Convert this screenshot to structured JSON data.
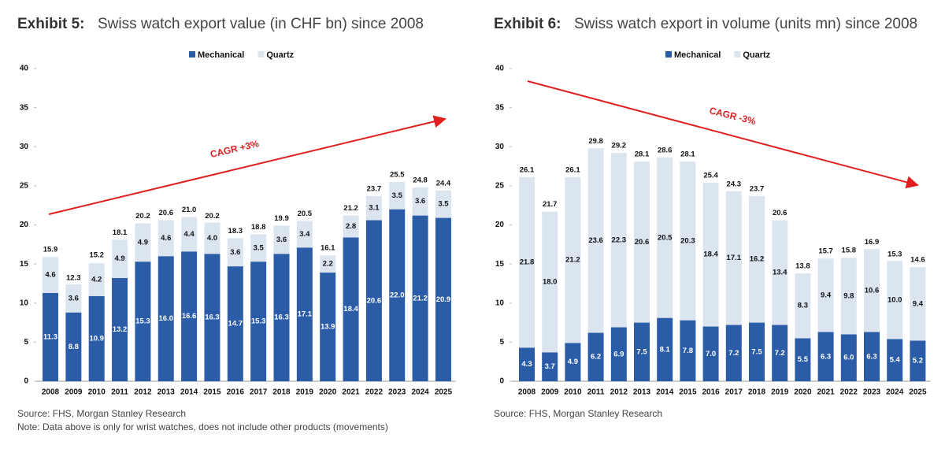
{
  "chart_data": [
    {
      "type": "bar",
      "stacked": true,
      "label": "Exhibit 5:",
      "title": "Swiss watch export value (in CHF bn) since 2008",
      "categories": [
        "2008",
        "2009",
        "2010",
        "2011",
        "2012",
        "2013",
        "2014",
        "2015",
        "2016",
        "2017",
        "2018",
        "2019",
        "2020",
        "2021",
        "2022",
        "2023",
        "2024",
        "2025"
      ],
      "series": [
        {
          "name": "Mechanical",
          "color": "#2b5ca8",
          "values": [
            11.3,
            8.8,
            10.9,
            13.2,
            15.3,
            16.0,
            16.6,
            16.3,
            14.7,
            15.3,
            16.3,
            17.1,
            13.9,
            18.4,
            20.6,
            22.0,
            21.2,
            20.9
          ],
          "value_labels": [
            "11.3",
            "8.8",
            "10.9",
            "13.2",
            "15.3",
            "16.0",
            "16.6",
            "16.3",
            "14.7",
            "15.3",
            "16.3",
            "17.1",
            "13.9",
            "18.4",
            "20.6",
            "22.0",
            "21.2",
            "20.9"
          ]
        },
        {
          "name": "Quartz",
          "color": "#dbe5f0",
          "values": [
            4.6,
            3.6,
            4.2,
            4.9,
            4.9,
            4.6,
            4.4,
            4.0,
            3.6,
            3.5,
            3.6,
            3.4,
            2.2,
            2.8,
            3.1,
            3.5,
            3.6,
            3.5
          ],
          "value_labels": [
            "4.6",
            "3.6",
            "4.2",
            "4.9",
            "4.9",
            "4.6",
            "4.4",
            "4.0",
            "3.6",
            "3.5",
            "3.6",
            "3.4",
            "2.2",
            "2.8",
            "3.1",
            "3.5",
            "3.6",
            "3.5"
          ]
        }
      ],
      "totals": {
        "values": [
          15.9,
          12.3,
          15.2,
          18.1,
          20.2,
          20.6,
          21.0,
          20.2,
          18.3,
          18.8,
          19.9,
          20.5,
          16.1,
          21.2,
          23.7,
          25.5,
          24.8,
          24.4
        ],
        "value_labels": [
          "15.9",
          "12.3",
          "15.2",
          "18.1",
          "20.2",
          "20.6",
          "21.0",
          "20.2",
          "18.3",
          "18.8",
          "19.9",
          "20.5",
          "16.1",
          "21.2",
          "23.7",
          "25.5",
          "24.8",
          "24.4"
        ]
      },
      "ylim": [
        0,
        40
      ],
      "yticks": [
        0,
        5,
        10,
        15,
        20,
        25,
        30,
        35,
        40
      ],
      "annotation": "CAGR +3%",
      "source": "Source: FHS, Morgan Stanley Research",
      "note": "Note: Data above is only for wrist watches, does not include other products (movements)"
    },
    {
      "type": "bar",
      "stacked": true,
      "label": "Exhibit 6:",
      "title": "Swiss watch export in volume (units mn) since 2008",
      "categories": [
        "2008",
        "2009",
        "2010",
        "2011",
        "2012",
        "2013",
        "2014",
        "2015",
        "2016",
        "2017",
        "2018",
        "2019",
        "2020",
        "2021",
        "2022",
        "2023",
        "2024",
        "2025"
      ],
      "series": [
        {
          "name": "Mechanical",
          "color": "#2b5ca8",
          "values": [
            4.3,
            3.7,
            4.9,
            6.2,
            6.9,
            7.5,
            8.1,
            7.8,
            7.0,
            7.2,
            7.5,
            7.2,
            5.5,
            6.3,
            6.0,
            6.3,
            5.4,
            5.2
          ],
          "value_labels": [
            "4.3",
            "3.7",
            "4.9",
            "6.2",
            "6.9",
            "7.5",
            "8.1",
            "7.8",
            "7.0",
            "7.2",
            "7.5",
            "7.2",
            "5.5",
            "6.3",
            "6.0",
            "6.3",
            "5.4",
            "5.2"
          ]
        },
        {
          "name": "Quartz",
          "color": "#dbe5f0",
          "values": [
            21.8,
            18.0,
            21.2,
            23.6,
            22.3,
            20.6,
            20.5,
            20.3,
            18.4,
            17.1,
            16.2,
            13.4,
            8.3,
            9.4,
            9.8,
            10.6,
            10.0,
            9.4
          ],
          "value_labels": [
            "21.8",
            "18.0",
            "21.2",
            "23.6",
            "22.3",
            "20.6",
            "20.5",
            "20.3",
            "18.4",
            "17.1",
            "16.2",
            "13.4",
            "8.3",
            "9.4",
            "9.8",
            "10.6",
            "10.0",
            "9.4"
          ]
        }
      ],
      "totals": {
        "values": [
          26.1,
          21.7,
          26.1,
          29.8,
          29.2,
          28.1,
          28.6,
          28.1,
          25.4,
          24.3,
          23.7,
          20.6,
          13.8,
          15.7,
          15.8,
          16.9,
          15.3,
          14.6
        ],
        "value_labels": [
          "26.1",
          "21.7",
          "26.1",
          "29.8",
          "29.2",
          "28.1",
          "28.6",
          "28.1",
          "25.4",
          "24.3",
          "23.7",
          "20.6",
          "13.8",
          "15.7",
          "15.8",
          "16.9",
          "15.3",
          "14.6"
        ]
      },
      "ylim": [
        0,
        40
      ],
      "yticks": [
        0,
        5,
        10,
        15,
        20,
        25,
        30,
        35,
        40
      ],
      "annotation": "CAGR -3%",
      "source": "Source: FHS, Morgan Stanley Research"
    }
  ]
}
